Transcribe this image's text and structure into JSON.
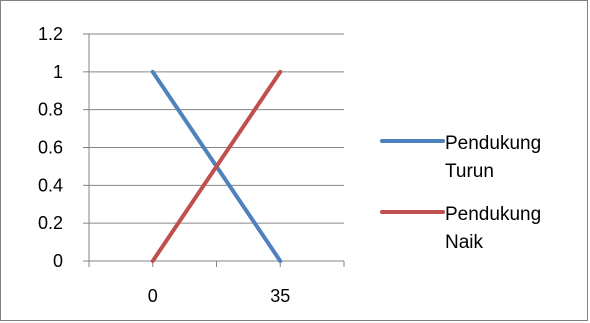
{
  "chart_data": {
    "type": "line",
    "title": "",
    "xlabel": "",
    "ylabel": "",
    "categories": [
      "0",
      "35"
    ],
    "x_tick_labels": [
      "0",
      "35"
    ],
    "ylim": [
      0,
      1.2
    ],
    "y_ticks": [
      0,
      0.2,
      0.4,
      0.6,
      0.8,
      1,
      1.2
    ],
    "y_tick_labels": [
      "0",
      "0.2",
      "0.4",
      "0.6",
      "0.8",
      "1",
      "1.2"
    ],
    "grid": true,
    "legend_position": "right",
    "series": [
      {
        "name_lines": [
          "Pendukung",
          "Turun"
        ],
        "values": [
          1,
          0
        ],
        "color": "#4f81bd"
      },
      {
        "name_lines": [
          "Pendukung",
          "Naik"
        ],
        "values": [
          0,
          1
        ],
        "color": "#c0504d"
      }
    ]
  }
}
